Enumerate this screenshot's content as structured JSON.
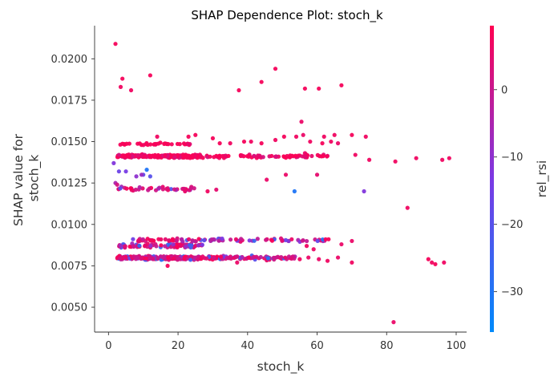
{
  "chart_data": {
    "type": "scatter",
    "title": "SHAP Dependence Plot: stoch_k",
    "xlabel": "stoch_k",
    "ylabel_lines": [
      "SHAP value for",
      "stoch_k"
    ],
    "xlim": [
      -4,
      103
    ],
    "ylim": [
      0.0035,
      0.022
    ],
    "xticks": [
      0,
      20,
      40,
      60,
      80,
      100
    ],
    "xtick_labels": [
      "0",
      "20",
      "40",
      "60",
      "80",
      "100"
    ],
    "yticks": [
      0.005,
      0.0075,
      0.01,
      0.0125,
      0.015,
      0.0175,
      0.02
    ],
    "ytick_labels": [
      "0.0050",
      "0.0075",
      "0.0100",
      "0.0125",
      "0.0150",
      "0.0175",
      "0.0200"
    ],
    "colorbar": {
      "label": "rel_rsi",
      "range": [
        -36,
        9.5
      ],
      "ticks": [
        0,
        -10,
        -20,
        -30
      ],
      "tick_labels": [
        "0",
        "−10",
        "−20",
        "−30"
      ],
      "colors": [
        "#008afb",
        "#7b39e4",
        "#ff0051"
      ]
    },
    "clusters": [
      {
        "x_range": [
          2.5,
          27
        ],
        "y_center": 0.01412,
        "y_spread": 8e-05,
        "count": 200,
        "color_range": [
          2,
          9
        ]
      },
      {
        "x_range": [
          27,
          63
        ],
        "y_center": 0.01412,
        "y_spread": 8e-05,
        "count": 75,
        "color_range": [
          2,
          9
        ]
      },
      {
        "x_range": [
          3,
          24
        ],
        "y_center": 0.01485,
        "y_spread": 6e-05,
        "count": 35,
        "color_range": [
          3,
          9
        ]
      },
      {
        "x_range": [
          2.5,
          27
        ],
        "y_center": 0.00798,
        "y_spread": 9e-05,
        "count": 230,
        "color_range": [
          -30,
          9
        ]
      },
      {
        "x_range": [
          27,
          54
        ],
        "y_center": 0.00798,
        "y_spread": 9e-05,
        "count": 90,
        "color_range": [
          -30,
          9
        ]
      },
      {
        "x_range": [
          3,
          27
        ],
        "y_center": 0.00872,
        "y_spread": 0.0001,
        "count": 80,
        "color_range": [
          -30,
          9
        ]
      },
      {
        "x_range": [
          7,
          64
        ],
        "y_center": 0.00905,
        "y_spread": 8e-05,
        "count": 90,
        "color_range": [
          -33,
          9
        ]
      },
      {
        "x_range": [
          2.5,
          26
        ],
        "y_center": 0.01215,
        "y_spread": 0.0001,
        "count": 40,
        "color_range": [
          -22,
          9
        ]
      }
    ],
    "points": [
      {
        "x": 2,
        "y": 0.0209,
        "c": 8
      },
      {
        "x": 3.5,
        "y": 0.0183,
        "c": 7
      },
      {
        "x": 4,
        "y": 0.0188,
        "c": 8
      },
      {
        "x": 6.5,
        "y": 0.0181,
        "c": 7
      },
      {
        "x": 12,
        "y": 0.019,
        "c": 8
      },
      {
        "x": 37.5,
        "y": 0.0181,
        "c": 8
      },
      {
        "x": 44,
        "y": 0.0186,
        "c": 8
      },
      {
        "x": 48,
        "y": 0.0194,
        "c": 8
      },
      {
        "x": 56.5,
        "y": 0.0182,
        "c": 8
      },
      {
        "x": 60.5,
        "y": 0.0182,
        "c": 8
      },
      {
        "x": 67,
        "y": 0.0184,
        "c": 8
      },
      {
        "x": 55.5,
        "y": 0.0162,
        "c": 6
      },
      {
        "x": 54,
        "y": 0.0153,
        "c": 7
      },
      {
        "x": 56,
        "y": 0.0154,
        "c": 6
      },
      {
        "x": 62,
        "y": 0.0153,
        "c": 7
      },
      {
        "x": 65,
        "y": 0.0154,
        "c": 7
      },
      {
        "x": 70,
        "y": 0.0154,
        "c": 8
      },
      {
        "x": 74,
        "y": 0.0153,
        "c": 7
      },
      {
        "x": 66,
        "y": 0.0149,
        "c": 6
      },
      {
        "x": 71,
        "y": 0.0142,
        "c": 7
      },
      {
        "x": 75,
        "y": 0.0139,
        "c": 7
      },
      {
        "x": 56.5,
        "y": 0.0143,
        "c": 6
      },
      {
        "x": 82.5,
        "y": 0.0138,
        "c": 7
      },
      {
        "x": 88.5,
        "y": 0.014,
        "c": 7
      },
      {
        "x": 96,
        "y": 0.0139,
        "c": 7
      },
      {
        "x": 98,
        "y": 0.014,
        "c": 7
      },
      {
        "x": 51,
        "y": 0.013,
        "c": 6
      },
      {
        "x": 60,
        "y": 0.013,
        "c": 5
      },
      {
        "x": 45.5,
        "y": 0.0127,
        "c": 6
      },
      {
        "x": 53.5,
        "y": 0.012,
        "c": -30
      },
      {
        "x": 73.5,
        "y": 0.012,
        "c": -12
      },
      {
        "x": 86,
        "y": 0.011,
        "c": 7
      },
      {
        "x": 1.5,
        "y": 0.0137,
        "c": -12
      },
      {
        "x": 3,
        "y": 0.0132,
        "c": -16
      },
      {
        "x": 5,
        "y": 0.0132,
        "c": -14
      },
      {
        "x": 11,
        "y": 0.0133,
        "c": -30
      },
      {
        "x": 12,
        "y": 0.0129,
        "c": -20
      },
      {
        "x": 10,
        "y": 0.013,
        "c": -18
      },
      {
        "x": 8,
        "y": 0.0129,
        "c": -10
      },
      {
        "x": 9.5,
        "y": 0.013,
        "c": -8
      },
      {
        "x": 2,
        "y": 0.0125,
        "c": -5
      },
      {
        "x": 2.5,
        "y": 0.0124,
        "c": 2
      },
      {
        "x": 30,
        "y": 0.0152,
        "c": 8
      },
      {
        "x": 23,
        "y": 0.0153,
        "c": 8
      },
      {
        "x": 25,
        "y": 0.0154,
        "c": 8
      },
      {
        "x": 14,
        "y": 0.0153,
        "c": 7
      },
      {
        "x": 32,
        "y": 0.0149,
        "c": 8
      },
      {
        "x": 35,
        "y": 0.0149,
        "c": 7
      },
      {
        "x": 39,
        "y": 0.015,
        "c": 8
      },
      {
        "x": 41,
        "y": 0.015,
        "c": 7
      },
      {
        "x": 44,
        "y": 0.0149,
        "c": 8
      },
      {
        "x": 48,
        "y": 0.0151,
        "c": 7
      },
      {
        "x": 50.5,
        "y": 0.0153,
        "c": 8
      },
      {
        "x": 58,
        "y": 0.015,
        "c": 7
      },
      {
        "x": 61.5,
        "y": 0.0149,
        "c": 8
      },
      {
        "x": 64,
        "y": 0.015,
        "c": 7
      },
      {
        "x": 31,
        "y": 0.0121,
        "c": 5
      },
      {
        "x": 28.5,
        "y": 0.012,
        "c": 7
      },
      {
        "x": 22,
        "y": 0.012,
        "c": 6
      },
      {
        "x": 70,
        "y": 0.009,
        "c": 6
      },
      {
        "x": 67,
        "y": 0.0088,
        "c": 6
      },
      {
        "x": 57,
        "y": 0.0087,
        "c": 7
      },
      {
        "x": 59,
        "y": 0.0085,
        "c": 6
      },
      {
        "x": 55,
        "y": 0.0079,
        "c": 7
      },
      {
        "x": 57.5,
        "y": 0.008,
        "c": 6
      },
      {
        "x": 63,
        "y": 0.0078,
        "c": 7
      },
      {
        "x": 66,
        "y": 0.008,
        "c": 6
      },
      {
        "x": 70,
        "y": 0.0077,
        "c": 7
      },
      {
        "x": 60.5,
        "y": 0.0079,
        "c": 6
      },
      {
        "x": 92,
        "y": 0.0079,
        "c": 8
      },
      {
        "x": 93,
        "y": 0.0077,
        "c": 7
      },
      {
        "x": 94,
        "y": 0.0076,
        "c": 8
      },
      {
        "x": 96.5,
        "y": 0.0077,
        "c": 7
      },
      {
        "x": 17,
        "y": 0.0075,
        "c": 8
      },
      {
        "x": 37,
        "y": 0.0077,
        "c": 6
      },
      {
        "x": 82,
        "y": 0.0041,
        "c": 6
      }
    ]
  }
}
